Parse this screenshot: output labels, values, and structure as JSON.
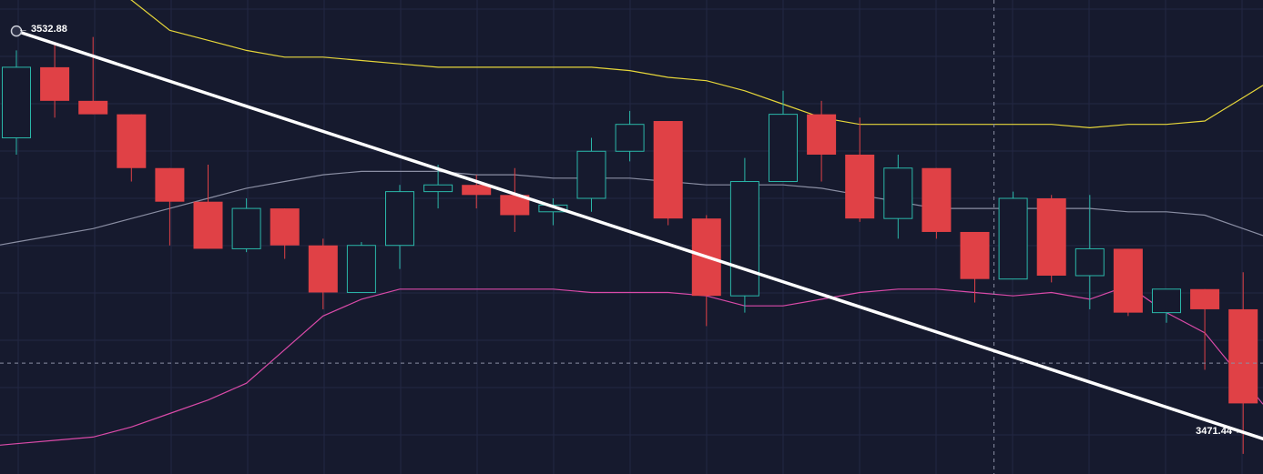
{
  "chart_data": {
    "type": "candlestick",
    "colors": {
      "background": "#161a2e",
      "grid": "#232844",
      "bull": "#2ab7a9",
      "bear": "#e04146",
      "upper_band": "#e6d63a",
      "middle_band": "#8a8ea3",
      "lower_band": "#d94aa8",
      "trendline": "#ffffff",
      "crosshair": "#8a8ea3"
    },
    "y_range": [
      3467.0,
      3537.5
    ],
    "candles": [
      {
        "o": 3517.0,
        "h": 3530.0,
        "l": 3514.5,
        "c": 3527.5
      },
      {
        "o": 3527.5,
        "h": 3531.0,
        "l": 3520.0,
        "c": 3522.5
      },
      {
        "o": 3522.5,
        "h": 3532.0,
        "l": 3520.5,
        "c": 3520.5
      },
      {
        "o": 3520.5,
        "h": 3520.5,
        "l": 3510.5,
        "c": 3512.5
      },
      {
        "o": 3512.5,
        "h": 3512.5,
        "l": 3501.0,
        "c": 3507.5
      },
      {
        "o": 3507.5,
        "h": 3513.0,
        "l": 3500.5,
        "c": 3500.5
      },
      {
        "o": 3500.5,
        "h": 3508.0,
        "l": 3500.0,
        "c": 3506.5
      },
      {
        "o": 3506.5,
        "h": 3506.5,
        "l": 3499.0,
        "c": 3501.0
      },
      {
        "o": 3501.0,
        "h": 3502.0,
        "l": 3491.5,
        "c": 3494.0
      },
      {
        "o": 3494.0,
        "h": 3501.5,
        "l": 3494.0,
        "c": 3501.0
      },
      {
        "o": 3501.0,
        "h": 3510.0,
        "l": 3497.5,
        "c": 3509.0
      },
      {
        "o": 3509.0,
        "h": 3513.0,
        "l": 3506.5,
        "c": 3510.0
      },
      {
        "o": 3510.0,
        "h": 3511.5,
        "l": 3506.5,
        "c": 3508.5
      },
      {
        "o": 3508.5,
        "h": 3512.5,
        "l": 3503.0,
        "c": 3505.5
      },
      {
        "o": 3506.0,
        "h": 3508.0,
        "l": 3504.0,
        "c": 3507.0
      },
      {
        "o": 3508.0,
        "h": 3517.0,
        "l": 3506.0,
        "c": 3515.0
      },
      {
        "o": 3515.0,
        "h": 3521.0,
        "l": 3513.5,
        "c": 3519.0
      },
      {
        "o": 3519.5,
        "h": 3519.5,
        "l": 3504.0,
        "c": 3505.0
      },
      {
        "o": 3505.0,
        "h": 3505.5,
        "l": 3489.0,
        "c": 3493.5
      },
      {
        "o": 3493.5,
        "h": 3514.0,
        "l": 3491.0,
        "c": 3510.5
      },
      {
        "o": 3510.5,
        "h": 3524.0,
        "l": 3510.5,
        "c": 3520.5
      },
      {
        "o": 3520.5,
        "h": 3522.5,
        "l": 3510.5,
        "c": 3514.5
      },
      {
        "o": 3514.5,
        "h": 3520.0,
        "l": 3504.5,
        "c": 3505.0
      },
      {
        "o": 3505.0,
        "h": 3514.5,
        "l": 3502.0,
        "c": 3512.5
      },
      {
        "o": 3512.5,
        "h": 3512.5,
        "l": 3502.0,
        "c": 3503.0
      },
      {
        "o": 3503.0,
        "h": 3503.0,
        "l": 3492.5,
        "c": 3496.0
      },
      {
        "o": 3496.0,
        "h": 3509.0,
        "l": 3496.0,
        "c": 3508.0
      },
      {
        "o": 3508.0,
        "h": 3508.5,
        "l": 3495.5,
        "c": 3496.5
      },
      {
        "o": 3496.5,
        "h": 3508.5,
        "l": 3491.5,
        "c": 3500.5
      },
      {
        "o": 3500.5,
        "h": 3500.5,
        "l": 3490.5,
        "c": 3491.0
      },
      {
        "o": 3491.0,
        "h": 3494.5,
        "l": 3489.5,
        "c": 3494.5
      },
      {
        "o": 3494.5,
        "h": 3494.5,
        "l": 3482.5,
        "c": 3491.5
      },
      {
        "o": 3491.5,
        "h": 3497.0,
        "l": 3470.0,
        "c": 3477.5
      }
    ],
    "upper_band": [
      3539.5,
      3540.5,
      3540.0,
      3537.5,
      3533.0,
      3531.5,
      3530.0,
      3529.0,
      3529.0,
      3528.5,
      3528.0,
      3527.5,
      3527.5,
      3527.5,
      3527.5,
      3527.5,
      3527.0,
      3526.0,
      3525.5,
      3524.0,
      3522.0,
      3520.0,
      3519.0,
      3519.0,
      3519.0,
      3519.0,
      3519.0,
      3519.0,
      3518.5,
      3519.0,
      3519.0,
      3519.5,
      3523.0
    ],
    "middle_band": [
      3501.5,
      3502.5,
      3503.5,
      3505.0,
      3506.5,
      3508.0,
      3509.5,
      3510.5,
      3511.5,
      3512.0,
      3512.0,
      3512.0,
      3511.5,
      3511.5,
      3511.0,
      3511.0,
      3511.0,
      3510.5,
      3510.0,
      3510.0,
      3510.0,
      3509.5,
      3508.5,
      3507.5,
      3506.5,
      3506.5,
      3506.5,
      3506.5,
      3506.5,
      3506.0,
      3506.0,
      3505.5,
      3503.5
    ],
    "lower_band": [
      3471.5,
      3472.0,
      3472.5,
      3474.0,
      3476.0,
      3478.0,
      3480.5,
      3485.5,
      3490.5,
      3493.0,
      3494.5,
      3494.5,
      3494.5,
      3494.5,
      3494.5,
      3494.0,
      3494.0,
      3494.0,
      3493.5,
      3492.0,
      3492.0,
      3493.0,
      3494.0,
      3494.5,
      3494.5,
      3494.0,
      3493.5,
      3494.0,
      3493.0,
      3495.0,
      3491.0,
      3488.0,
      3481.0
    ],
    "crosshair": {
      "candle_index": 25.5,
      "price": 3483.5
    },
    "trendline": {
      "start_price": 3532.88,
      "end_price": 3471.44
    },
    "labels": {
      "start": "← 3532.88",
      "end": "3471.44 →"
    }
  }
}
